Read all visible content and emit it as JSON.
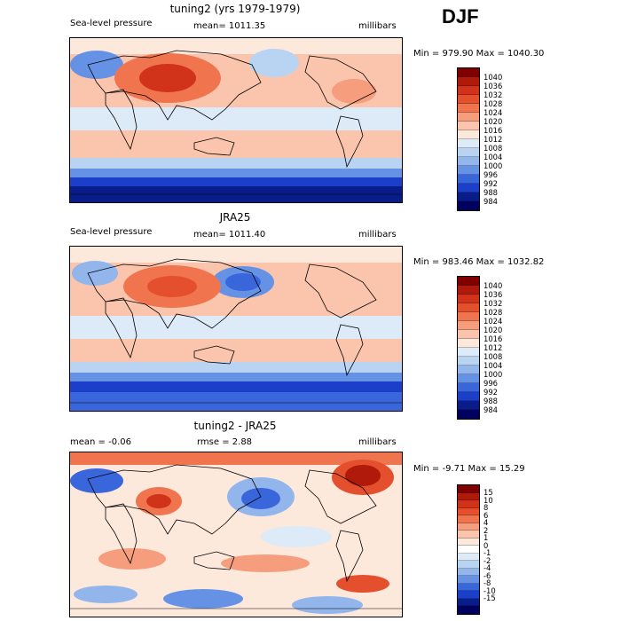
{
  "season": "DJF",
  "panels": [
    {
      "title": "tuning2 (yrs 1979-1979)",
      "left_label": "Sea-level pressure",
      "mid_label": "mean= 1011.35",
      "right_label": "millibars",
      "stats": "Min = 979.90 Max = 1040.30",
      "colorbar": [
        "1040",
        "1036",
        "1032",
        "1028",
        "1024",
        "1020",
        "1016",
        "1012",
        "1008",
        "1004",
        "1000",
        "996",
        "992",
        "988",
        "984"
      ]
    },
    {
      "title": "JRA25",
      "left_label": "Sea-level pressure",
      "mid_label": "mean= 1011.40",
      "right_label": "millibars",
      "stats": "Min = 983.46 Max = 1032.82",
      "colorbar": [
        "1040",
        "1036",
        "1032",
        "1028",
        "1024",
        "1020",
        "1016",
        "1012",
        "1008",
        "1004",
        "1000",
        "996",
        "992",
        "988",
        "984"
      ]
    },
    {
      "title": "tuning2 - JRA25",
      "left_label": "mean = -0.06",
      "mid_label": "rmse = 2.88",
      "right_label": "millibars",
      "stats": "Min = -9.71 Max = 15.29",
      "colorbar": [
        "15",
        "10",
        "8",
        "6",
        "4",
        "2",
        "1",
        "0",
        "-1",
        "-2",
        "-4",
        "-6",
        "-8",
        "-10",
        "-15"
      ]
    }
  ],
  "colors": {
    "abs_scale": [
      "#800000",
      "#b01a0a",
      "#d0321a",
      "#e4502e",
      "#f0754f",
      "#f59d7d",
      "#fac5ac",
      "#fde8dc",
      "#ddeaf8",
      "#b9d3f2",
      "#92b6ec",
      "#6692e6",
      "#3a66dc",
      "#1b3fc8",
      "#081d8a",
      "#000060"
    ],
    "diff_scale": [
      "#800000",
      "#b01a0a",
      "#d0321a",
      "#e4502e",
      "#f0754f",
      "#f59d7d",
      "#fac5ac",
      "#fde8dc",
      "#ffffff",
      "#ddeaf8",
      "#b9d3f2",
      "#92b6ec",
      "#6692e6",
      "#3a66dc",
      "#1b3fc8",
      "#081d8a",
      "#000060"
    ]
  }
}
